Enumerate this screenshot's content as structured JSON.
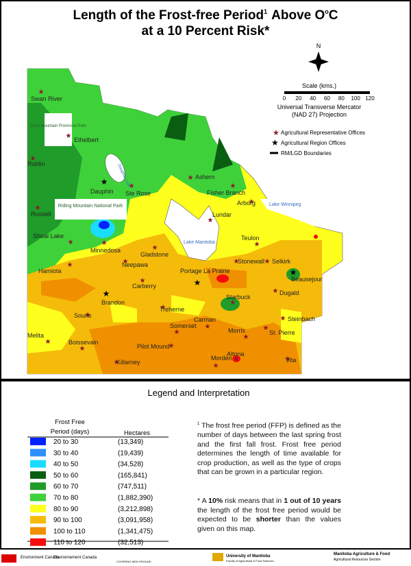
{
  "title": {
    "part1": "Length of the Frost-free Period",
    "note_mark": "1",
    "part2": "Above O",
    "degree": "o",
    "part3": "C",
    "line2": "at a 10 Percent Risk*"
  },
  "map": {
    "compass": "N",
    "scale_label": "Scale (kms.)",
    "scale_ticks": [
      "0",
      "20",
      "40",
      "60",
      "80",
      "100",
      "120"
    ],
    "projection": [
      "Universal Transverse Mercator",
      "(NAD 27) Projection"
    ],
    "key": [
      "Agricultural Representative Offices",
      "Agricultural Region Offices",
      "RM/LGD Boundaries"
    ],
    "places": [
      "Duck Mountain Provincial Park",
      "Riding Mountain National Park",
      "Dauphin Lake",
      "Lake Manitoba",
      "Lake Winnipeg"
    ],
    "towns": [
      {
        "name": "Swan River",
        "office": "representative"
      },
      {
        "name": "Ethelbert",
        "office": "representative"
      },
      {
        "name": "Roblin",
        "office": "representative"
      },
      {
        "name": "Dauphin",
        "office": "region"
      },
      {
        "name": "Ste Rose",
        "office": "representative"
      },
      {
        "name": "Ashern",
        "office": "representative"
      },
      {
        "name": "Fisher Branch",
        "office": "representative"
      },
      {
        "name": "Arborg",
        "office": "representative"
      },
      {
        "name": "Russell",
        "office": "representative"
      },
      {
        "name": "Lundar",
        "office": "representative"
      },
      {
        "name": "Shoal Lake",
        "office": "representative"
      },
      {
        "name": "Minnedosa",
        "office": "representative"
      },
      {
        "name": "Gladstone",
        "office": "representative"
      },
      {
        "name": "Teulon",
        "office": "representative"
      },
      {
        "name": "Neepawa",
        "office": "representative"
      },
      {
        "name": "Hamiota",
        "office": "representative"
      },
      {
        "name": "Stonewall",
        "office": "representative"
      },
      {
        "name": "Selkirk",
        "office": "representative"
      },
      {
        "name": "Portage La Prairie",
        "office": "region"
      },
      {
        "name": "Beausejour",
        "office": "region"
      },
      {
        "name": "Carberry",
        "office": "representative"
      },
      {
        "name": "Dugald",
        "office": "representative"
      },
      {
        "name": "Brandon",
        "office": "region"
      },
      {
        "name": "Starbuck",
        "office": "representative"
      },
      {
        "name": "Souris",
        "office": "representative"
      },
      {
        "name": "Treherne",
        "office": "representative"
      },
      {
        "name": "Steinbach",
        "office": "representative"
      },
      {
        "name": "Carman",
        "office": "representative"
      },
      {
        "name": "Somerset",
        "office": "representative"
      },
      {
        "name": "Morris",
        "office": "representative"
      },
      {
        "name": "St. Pierre",
        "office": "representative"
      },
      {
        "name": "Melita",
        "office": "representative"
      },
      {
        "name": "Boissevain",
        "office": "representative"
      },
      {
        "name": "Pilot Mound",
        "office": "representative"
      },
      {
        "name": "Altona",
        "office": "representative"
      },
      {
        "name": "Morden",
        "office": "representative"
      },
      {
        "name": "Killarney",
        "office": "representative"
      },
      {
        "name": "Vita",
        "office": "representative"
      }
    ]
  },
  "legend": {
    "title": "Legend and Interpretation",
    "header": [
      "Frost Free",
      "Period (days)",
      "Hectares"
    ],
    "rows": [
      {
        "range": "20 to 30",
        "hectares": "(13,349)",
        "color": "#0022ff"
      },
      {
        "range": "30 to 40",
        "hectares": "(19,439)",
        "color": "#2f8fff"
      },
      {
        "range": "40 to 50",
        "hectares": "(34,528)",
        "color": "#19dcff"
      },
      {
        "range": "50 to 60",
        "hectares": "(165,841)",
        "color": "#0a5e12"
      },
      {
        "range": "60 to 70",
        "hectares": "(747,511)",
        "color": "#1f9c2a"
      },
      {
        "range": "70 to 80",
        "hectares": "(1,882,390)",
        "color": "#3fd13a"
      },
      {
        "range": "80 to 90",
        "hectares": "(3,212,898)",
        "color": "#ffff1e"
      },
      {
        "range": "90 to 100",
        "hectares": "(3,091,958)",
        "color": "#f5bb0a"
      },
      {
        "range": "100 to 110",
        "hectares": "(1,341,475)",
        "color": "#f09000"
      },
      {
        "range": "110 to 120",
        "hectares": "(32,513)",
        "color": "#f50d0d"
      }
    ],
    "note1_mark": "1",
    "note1": "The frost free period (FFP) is defined as the number of days between the last spring frost and the first fall frost. Frost free period determines the length of time available for crop production, as well as the type of crops that can be grown in a particular region.",
    "note2": [
      "* A ",
      "10%",
      " risk means that in ",
      "1 out of 10 years",
      " the length of the frost free period would be expected to be ",
      "shorter",
      " than the values given on this map."
    ]
  },
  "footer": [
    "Environment Canada",
    "Environnement Canada",
    "COVERING NEW GROUND",
    "University of Manitoba",
    "Faculty of Agricultural & Food Sciences",
    "Manitoba Agriculture & Food",
    "Agricultural Resources Section"
  ]
}
